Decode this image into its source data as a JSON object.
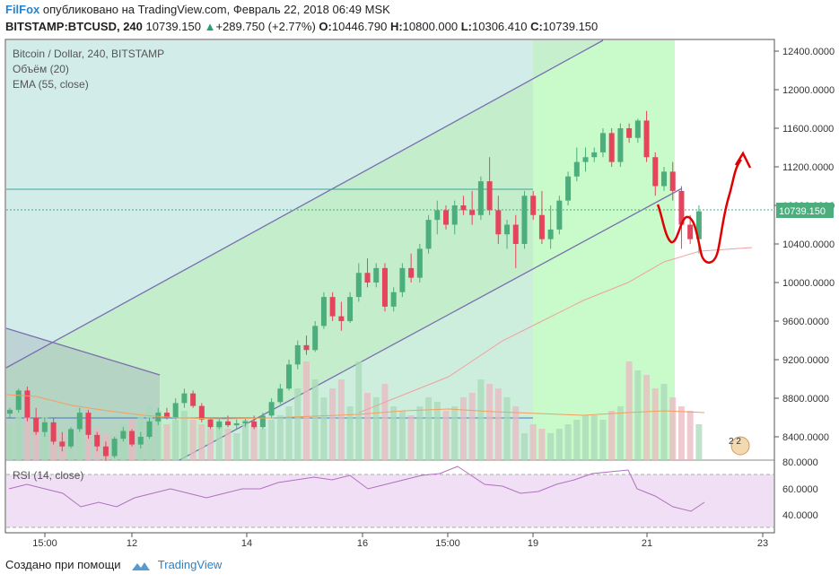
{
  "header": {
    "brand": "FilFox",
    "published": "опубликовано на TradingView.com, Февраль 22, 2018 06:49 MSK",
    "symbol": "BITSTAMP:BTCUSD, 240",
    "last": "10739.150",
    "change": "+289.750 (+2.77%)",
    "o_label": "O:",
    "o": "10446.790",
    "h_label": "H:",
    "h": "10800.000",
    "l_label": "L:",
    "l": "10306.410",
    "c_label": "C:",
    "c": "10739.150"
  },
  "legend": {
    "title": "Bitcoin / Dollar, 240, BITSTAMP",
    "volume": "Объём (20)",
    "ema": "EMA (55, close)",
    "rsi": "RSI (14, close)"
  },
  "price_axis": {
    "labels": [
      "12400.0000",
      "12000.0000",
      "11600.0000",
      "11200.0000",
      "10800.0000",
      "10400.0000",
      "10000.0000",
      "9600.0000",
      "9200.0000",
      "8800.0000",
      "8400.0000"
    ],
    "current": "10739.150",
    "rsi_labels": [
      "80.0000",
      "60.0000",
      "40.0000"
    ]
  },
  "time_axis": {
    "labels": [
      "15:00",
      "12",
      "14",
      "16",
      "15:00",
      "19",
      "21",
      "23"
    ]
  },
  "colors": {
    "up": "#4cae7c",
    "down": "#e4455d",
    "drawing": "#e00000",
    "channel": "#7a6fb0",
    "ema": "#f0a0a0",
    "rsi": "#b070c0"
  },
  "chart_data": {
    "type": "candlestick",
    "ylim": [
      8150,
      12600
    ],
    "series": [
      {
        "name": "BTCUSD",
        "o_h_l_c": "see candles"
      }
    ]
  },
  "footer": {
    "created": "Создано при помощи",
    "tradingview": "TradingView"
  }
}
